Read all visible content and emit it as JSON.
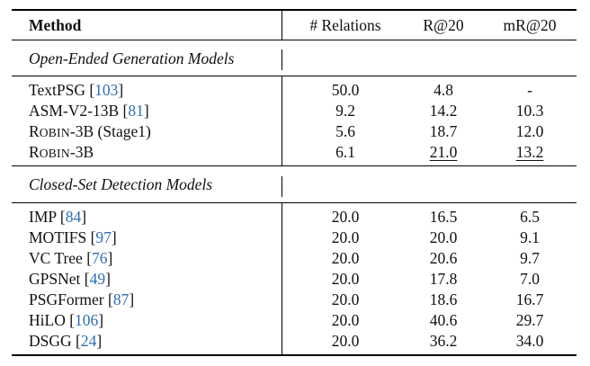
{
  "header": {
    "method": "Method",
    "relations": "# Relations",
    "r20": "R@20",
    "mr20": "mR@20"
  },
  "sections": [
    {
      "title": "Open-Ended Generation Models",
      "rows": [
        {
          "name": "TextPSG",
          "cite": "103",
          "relations": "50.0",
          "r20": "4.8",
          "mr20": "-"
        },
        {
          "name": "ASM-V2-13B",
          "cite": "81",
          "relations": "9.2",
          "r20": "14.2",
          "mr20": "10.3"
        },
        {
          "name_initial": "R",
          "name_rest": "OBIN",
          "name_suffix": "-3B (Stage1)",
          "relations": "5.6",
          "r20": "18.7",
          "mr20": "12.0"
        },
        {
          "name_initial": "R",
          "name_rest": "OBIN",
          "name_suffix": "-3B",
          "relations": "6.1",
          "r20": "21.0",
          "mr20": "13.2",
          "underline": true
        }
      ]
    },
    {
      "title": "Closed-Set Detection Models",
      "rows": [
        {
          "name": "IMP",
          "cite": "84",
          "relations": "20.0",
          "r20": "16.5",
          "mr20": "6.5"
        },
        {
          "name": "MOTIFS",
          "cite": "97",
          "relations": "20.0",
          "r20": "20.0",
          "mr20": "9.1"
        },
        {
          "name": "VC Tree",
          "cite": "76",
          "relations": "20.0",
          "r20": "20.6",
          "mr20": "9.7"
        },
        {
          "name": "GPSNet",
          "cite": "49",
          "relations": "20.0",
          "r20": "17.8",
          "mr20": "7.0"
        },
        {
          "name": "PSGFormer",
          "cite": "87",
          "relations": "20.0",
          "r20": "18.6",
          "mr20": "16.7"
        },
        {
          "name": "HiLO",
          "cite": "106",
          "relations": "20.0",
          "r20": "40.6",
          "mr20": "29.7"
        },
        {
          "name": "DSGG",
          "cite": "24",
          "relations": "20.0",
          "r20": "36.2",
          "mr20": "34.0"
        }
      ]
    }
  ],
  "colors": {
    "citation": "#2f6db5",
    "rule": "#000000"
  }
}
